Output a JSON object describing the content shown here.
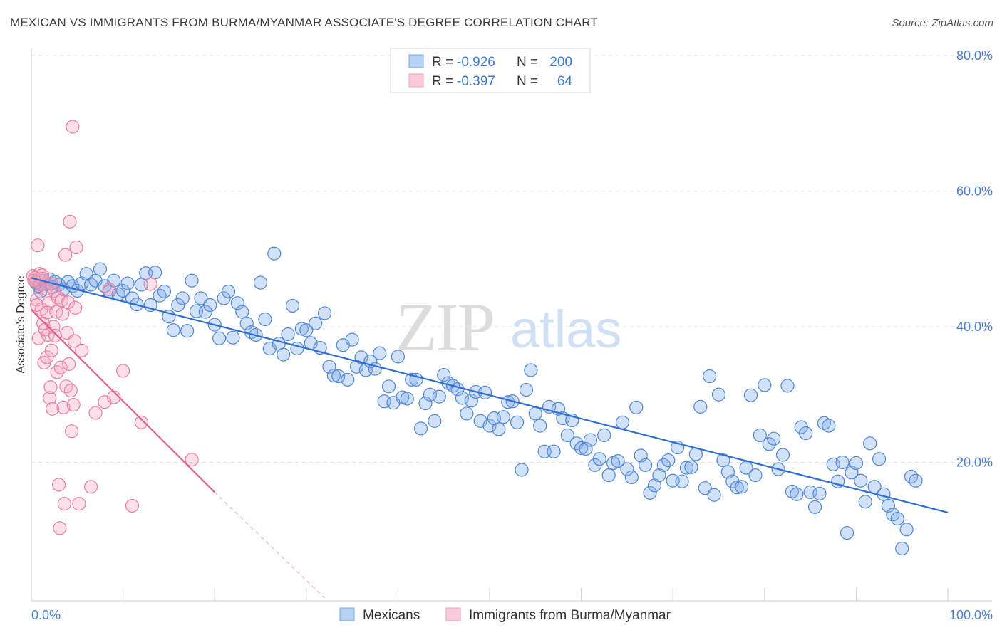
{
  "header": {
    "title": "MEXICAN VS IMMIGRANTS FROM BURMA/MYANMAR ASSOCIATE'S DEGREE CORRELATION CHART",
    "source": "Source: ZipAtlas.com"
  },
  "watermark": {
    "zip": "ZIP",
    "atlas": "atlas"
  },
  "legend": {
    "rows": [
      {
        "r_label": "R =",
        "r_value": "-0.926",
        "n_label": "N =",
        "n_value": "200"
      },
      {
        "r_label": "R =",
        "r_value": "-0.397",
        "n_label": "N =",
        "n_value": "64"
      }
    ]
  },
  "bottom_legend": [
    "Mexicans",
    "Immigrants from Burma/Myanmar"
  ],
  "chart_data": {
    "type": "scatter",
    "title": "MEXICAN VS IMMIGRANTS FROM BURMA/MYANMAR ASSOCIATE'S DEGREE CORRELATION CHART",
    "xlabel": "",
    "ylabel": "Associate's Degree",
    "xlim": [
      0,
      100
    ],
    "ylim": [
      0,
      84
    ],
    "x_tick_labels": [
      "0.0%",
      "100.0%"
    ],
    "y_ticks": [
      20,
      40,
      60,
      80
    ],
    "y_tick_labels": [
      "20.0%",
      "40.0%",
      "60.0%",
      "80.0%"
    ],
    "grid": "horizontal dashed",
    "legend_position": "top-center",
    "series": [
      {
        "name": "Mexicans",
        "color": "#7aaaea",
        "stroke": "#4f86d6",
        "trend_color": "#2f6fd0",
        "trend": {
          "x0": 0,
          "y0": 47.2,
          "x1": 100,
          "y1": 12.6
        },
        "points": [
          [
            0.5,
            46.5
          ],
          [
            0.8,
            46
          ],
          [
            1,
            45.2
          ],
          [
            1.3,
            46.8
          ],
          [
            1.6,
            46.3
          ],
          [
            2,
            47
          ],
          [
            2.3,
            45.8
          ],
          [
            2.6,
            46.6
          ],
          [
            3,
            46.2
          ],
          [
            3.5,
            45.5
          ],
          [
            4,
            46.6
          ],
          [
            4.5,
            46
          ],
          [
            5,
            45.3
          ],
          [
            5.5,
            46.4
          ],
          [
            6,
            47.8
          ],
          [
            6.5,
            46.2
          ],
          [
            7,
            46.8
          ],
          [
            7.5,
            48.5
          ],
          [
            8,
            46
          ],
          [
            8.5,
            45.2
          ],
          [
            9,
            46.8
          ],
          [
            9.5,
            44.8
          ],
          [
            10,
            45.3
          ],
          [
            10.5,
            46.4
          ],
          [
            11,
            44.2
          ],
          [
            11.5,
            43.3
          ],
          [
            12,
            46.2
          ],
          [
            12.5,
            47.9
          ],
          [
            13,
            43.2
          ],
          [
            13.5,
            48
          ],
          [
            14,
            44.6
          ],
          [
            14.5,
            45.2
          ],
          [
            15,
            41.5
          ],
          [
            15.5,
            39.5
          ],
          [
            16,
            43.2
          ],
          [
            16.5,
            44.2
          ],
          [
            17,
            39.4
          ],
          [
            17.5,
            46.8
          ],
          [
            18,
            42.3
          ],
          [
            18.5,
            44.2
          ],
          [
            19,
            42.2
          ],
          [
            19.5,
            43.2
          ],
          [
            20,
            40.3
          ],
          [
            20.5,
            38.3
          ],
          [
            21,
            44.2
          ],
          [
            21.5,
            45.2
          ],
          [
            22,
            38.4
          ],
          [
            22.5,
            43.5
          ],
          [
            23,
            42.2
          ],
          [
            23.5,
            40.5
          ],
          [
            24,
            39.2
          ],
          [
            24.5,
            38.8
          ],
          [
            25,
            46.5
          ],
          [
            25.5,
            41.1
          ],
          [
            26,
            36.8
          ],
          [
            26.5,
            50.8
          ],
          [
            27,
            37.5
          ],
          [
            27.5,
            35.9
          ],
          [
            28,
            38.9
          ],
          [
            28.5,
            43.1
          ],
          [
            29,
            36.8
          ],
          [
            29.5,
            39.7
          ],
          [
            30,
            39.5
          ],
          [
            30.5,
            37.6
          ],
          [
            31,
            40.5
          ],
          [
            31.5,
            36.9
          ],
          [
            32,
            42
          ],
          [
            32.5,
            34.1
          ],
          [
            33,
            32.8
          ],
          [
            33.5,
            32.7
          ],
          [
            34,
            37.3
          ],
          [
            34.5,
            32.2
          ],
          [
            35,
            38.1
          ],
          [
            35.5,
            34.1
          ],
          [
            36,
            35.5
          ],
          [
            36.5,
            33.6
          ],
          [
            37,
            34.9
          ],
          [
            37.5,
            33.8
          ],
          [
            38,
            36.1
          ],
          [
            38.5,
            29
          ],
          [
            39,
            31.2
          ],
          [
            39.5,
            28.8
          ],
          [
            40,
            35.6
          ],
          [
            40.5,
            29.6
          ],
          [
            41,
            29.4
          ],
          [
            41.5,
            32.2
          ],
          [
            42,
            32.2
          ],
          [
            42.5,
            25
          ],
          [
            43,
            28.7
          ],
          [
            43.5,
            30
          ],
          [
            44,
            26.1
          ],
          [
            44.5,
            29.7
          ],
          [
            45,
            32.9
          ],
          [
            45.5,
            31.7
          ],
          [
            46,
            31.3
          ],
          [
            46.5,
            30.8
          ],
          [
            47,
            29.5
          ],
          [
            47.5,
            27.2
          ],
          [
            48,
            29.1
          ],
          [
            48.5,
            30.4
          ],
          [
            49,
            26.1
          ],
          [
            49.5,
            30.3
          ],
          [
            50,
            25.4
          ],
          [
            50.5,
            26.5
          ],
          [
            51,
            24.9
          ],
          [
            51.5,
            26.7
          ],
          [
            52,
            28.9
          ],
          [
            52.5,
            29
          ],
          [
            53,
            25.9
          ],
          [
            53.5,
            18.9
          ],
          [
            54,
            30.7
          ],
          [
            54.5,
            33.6
          ],
          [
            55,
            27.2
          ],
          [
            55.5,
            25.4
          ],
          [
            56,
            21.6
          ],
          [
            56.5,
            28.2
          ],
          [
            57,
            21.6
          ],
          [
            57.5,
            27.9
          ],
          [
            58,
            26.5
          ],
          [
            58.5,
            24
          ],
          [
            59,
            26.2
          ],
          [
            59.5,
            22.8
          ],
          [
            60,
            22.1
          ],
          [
            60.5,
            22
          ],
          [
            61,
            23.3
          ],
          [
            61.5,
            19.6
          ],
          [
            62,
            20.5
          ],
          [
            62.5,
            24
          ],
          [
            63,
            18.1
          ],
          [
            63.5,
            19.9
          ],
          [
            64,
            20.2
          ],
          [
            64.5,
            25.9
          ],
          [
            65,
            19
          ],
          [
            65.5,
            17.8
          ],
          [
            66,
            28.1
          ],
          [
            66.5,
            21
          ],
          [
            67,
            19.6
          ],
          [
            67.5,
            15.5
          ],
          [
            68,
            16.6
          ],
          [
            68.5,
            18.1
          ],
          [
            69,
            19.6
          ],
          [
            69.5,
            20.3
          ],
          [
            70,
            17.3
          ],
          [
            70.5,
            22.2
          ],
          [
            71,
            17.2
          ],
          [
            71.5,
            19.2
          ],
          [
            72,
            19.3
          ],
          [
            72.5,
            21.2
          ],
          [
            73,
            28.2
          ],
          [
            73.5,
            16.2
          ],
          [
            74,
            32.7
          ],
          [
            74.5,
            15.2
          ],
          [
            75,
            30
          ],
          [
            75.5,
            20.3
          ],
          [
            76,
            18.6
          ],
          [
            76.5,
            17.2
          ],
          [
            77,
            16.3
          ],
          [
            77.5,
            16.4
          ],
          [
            78,
            19.2
          ],
          [
            78.5,
            29.9
          ],
          [
            79,
            18.1
          ],
          [
            79.5,
            24
          ],
          [
            80,
            31.4
          ],
          [
            80.5,
            22.7
          ],
          [
            81,
            23.5
          ],
          [
            81.5,
            19
          ],
          [
            82,
            21.1
          ],
          [
            82.5,
            31.3
          ],
          [
            83,
            15.7
          ],
          [
            83.5,
            15.3
          ],
          [
            84,
            25.2
          ],
          [
            84.5,
            24.3
          ],
          [
            85,
            15.6
          ],
          [
            85.5,
            13.4
          ],
          [
            86,
            15.4
          ],
          [
            86.5,
            25.8
          ],
          [
            87,
            25.4
          ],
          [
            87.5,
            19.7
          ],
          [
            88,
            17.2
          ],
          [
            88.5,
            20
          ],
          [
            89,
            9.6
          ],
          [
            89.5,
            18.5
          ],
          [
            90,
            19.9
          ],
          [
            90.5,
            17.3
          ],
          [
            91,
            14.2
          ],
          [
            91.5,
            22.8
          ],
          [
            92,
            16.4
          ],
          [
            92.5,
            20.5
          ],
          [
            93,
            15.3
          ],
          [
            93.5,
            13.6
          ],
          [
            94,
            12.3
          ],
          [
            94.5,
            11.7
          ],
          [
            95,
            7.3
          ],
          [
            95.5,
            10.1
          ],
          [
            96,
            17.9
          ],
          [
            96.5,
            17.3
          ]
        ]
      },
      {
        "name": "Immigrants from Burma/Myanmar",
        "color": "#f4a7bf",
        "stroke": "#e87ea0",
        "trend_color": "#e0608b",
        "trend": {
          "x0": 0,
          "y0": 42.5,
          "x1": 20,
          "y1": 15.6,
          "dash_to_x": 32,
          "dash_to_y": 0
        },
        "points": [
          [
            0.2,
            47.5
          ],
          [
            0.4,
            47.2
          ],
          [
            0.5,
            46.6
          ],
          [
            0.6,
            44
          ],
          [
            0.7,
            52
          ],
          [
            0.8,
            38.3
          ],
          [
            0.9,
            47.8
          ],
          [
            1,
            46.2
          ],
          [
            1.1,
            42.6
          ],
          [
            1.2,
            47.1
          ],
          [
            1.3,
            40.5
          ],
          [
            1.4,
            34.7
          ],
          [
            1.5,
            39.6
          ],
          [
            1.6,
            45.6
          ],
          [
            1.7,
            35.5
          ],
          [
            1.8,
            38.8
          ],
          [
            1.9,
            43.5
          ],
          [
            2,
            29.5
          ],
          [
            2.1,
            31.1
          ],
          [
            2.2,
            36.5
          ],
          [
            2.3,
            27.9
          ],
          [
            2.4,
            40
          ],
          [
            2.5,
            45.3
          ],
          [
            2.6,
            38.7
          ],
          [
            2.7,
            42.2
          ],
          [
            2.8,
            33.3
          ],
          [
            2.9,
            44.3
          ],
          [
            3,
            16.7
          ],
          [
            3.1,
            10.3
          ],
          [
            3.2,
            34
          ],
          [
            3.3,
            43.9
          ],
          [
            3.4,
            41.9
          ],
          [
            3.5,
            28.1
          ],
          [
            3.6,
            13.9
          ],
          [
            3.7,
            50.6
          ],
          [
            3.8,
            31.2
          ],
          [
            3.9,
            39.1
          ],
          [
            4,
            43.6
          ],
          [
            4.1,
            34.5
          ],
          [
            4.2,
            55.5
          ],
          [
            4.3,
            30.6
          ],
          [
            4.4,
            24.6
          ],
          [
            4.5,
            69.5
          ],
          [
            4.6,
            28.5
          ],
          [
            4.7,
            37.9
          ],
          [
            4.8,
            42.8
          ],
          [
            4.9,
            51.7
          ],
          [
            5.2,
            13.9
          ],
          [
            5.5,
            36.5
          ],
          [
            6.5,
            16.4
          ],
          [
            7,
            27.3
          ],
          [
            8,
            28.9
          ],
          [
            8.5,
            45.5
          ],
          [
            9,
            29.6
          ],
          [
            10,
            33.5
          ],
          [
            11,
            13.6
          ],
          [
            12,
            25.9
          ],
          [
            13,
            46.3
          ],
          [
            17.5,
            20.4
          ],
          [
            0.3,
            46.8
          ],
          [
            0.6,
            43.2
          ],
          [
            1.2,
            47.6
          ],
          [
            2.2,
            46.4
          ],
          [
            1.7,
            42.1
          ]
        ]
      }
    ]
  }
}
